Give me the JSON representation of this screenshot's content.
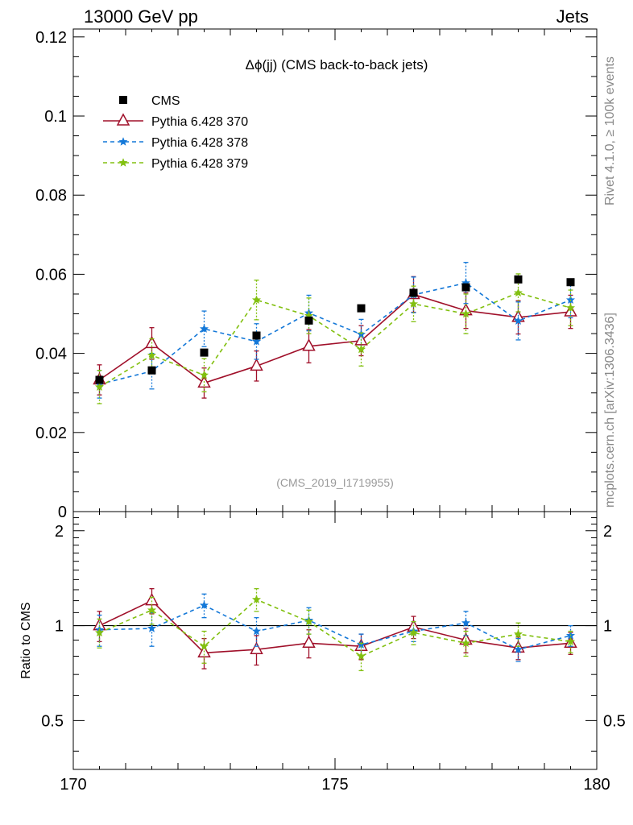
{
  "header": {
    "left": "13000 GeV pp",
    "right": "Jets"
  },
  "side": {
    "top": "Rivet 4.1.0, ≥ 100k events",
    "bottom": "mcplots.cern.ch [arXiv:1306.3436]"
  },
  "chart_data": {
    "type": "scatter",
    "title": "Δϕ(jj) (CMS back-to-back jets)",
    "analysis_tag": "(CMS_2019_I1719955)",
    "xlim": [
      170,
      180
    ],
    "x_ticks": [
      "170",
      "175",
      "180"
    ],
    "x": [
      170.5,
      171.5,
      172.5,
      173.5,
      174.5,
      175.5,
      176.5,
      177.5,
      178.5,
      179.5
    ],
    "main": {
      "ylim": [
        0,
        0.122
      ],
      "y_ticks": [
        "0",
        "0.02",
        "0.04",
        "0.06",
        "0.08",
        "0.1",
        "0.12"
      ],
      "y_tick_values": [
        0,
        0.02,
        0.04,
        0.06,
        0.08,
        0.1,
        0.12
      ]
    },
    "ratio": {
      "ylabel": "Ratio to CMS",
      "ylim": [
        0.35,
        2.3
      ],
      "y_ticks": [
        "0.5",
        "1",
        "2"
      ],
      "y_tick_values": [
        0.5,
        1,
        2
      ],
      "reference_line": 1
    },
    "series": [
      {
        "name": "CMS",
        "color": "#000000",
        "marker": "square",
        "values": [
          0.0333,
          0.0357,
          0.0402,
          0.0445,
          0.0483,
          0.0514,
          0.0553,
          0.0567,
          0.0587,
          0.058
        ],
        "errors": [
          0.0005,
          0.0005,
          0.0005,
          0.0005,
          0.0005,
          0.0005,
          0.0005,
          0.0005,
          0.0005,
          0.0005
        ],
        "ratio": [
          1,
          1,
          1,
          1,
          1,
          1,
          1,
          1,
          1,
          1
        ]
      },
      {
        "name": "Pythia 6.428 370",
        "color": "#a0102a",
        "marker": "triangle",
        "line": "solid",
        "values": [
          0.0333,
          0.0425,
          0.0325,
          0.0368,
          0.0418,
          0.0432,
          0.0549,
          0.0508,
          0.0491,
          0.0505
        ],
        "errors": [
          0.0038,
          0.004,
          0.0038,
          0.0038,
          0.0042,
          0.0038,
          0.0045,
          0.0045,
          0.0042,
          0.0042
        ],
        "ratio": [
          1.0,
          1.2,
          0.82,
          0.84,
          0.88,
          0.86,
          0.99,
          0.9,
          0.85,
          0.88
        ],
        "ratio_errors": [
          0.11,
          0.11,
          0.09,
          0.09,
          0.09,
          0.08,
          0.08,
          0.08,
          0.07,
          0.07
        ]
      },
      {
        "name": "Pythia 6.428 378",
        "color": "#1478d8",
        "marker": "star",
        "line": "dashed",
        "values": [
          0.0322,
          0.0355,
          0.0462,
          0.043,
          0.0502,
          0.0448,
          0.0548,
          0.0578,
          0.0482,
          0.0535
        ],
        "errors": [
          0.0035,
          0.0045,
          0.0045,
          0.0045,
          0.0045,
          0.0038,
          0.0045,
          0.0052,
          0.0048,
          0.0045
        ],
        "ratio": [
          0.97,
          0.98,
          1.16,
          0.96,
          1.04,
          0.87,
          0.96,
          1.02,
          0.84,
          0.93
        ],
        "ratio_errors": [
          0.11,
          0.12,
          0.1,
          0.1,
          0.1,
          0.07,
          0.07,
          0.09,
          0.07,
          0.07
        ]
      },
      {
        "name": "Pythia 6.428 379",
        "color": "#82c010",
        "marker": "star",
        "line": "dashed",
        "values": [
          0.0315,
          0.0395,
          0.0345,
          0.0535,
          0.0495,
          0.041,
          0.0525,
          0.05,
          0.0553,
          0.0515
        ],
        "errors": [
          0.0042,
          0.0042,
          0.0042,
          0.005,
          0.0045,
          0.0042,
          0.0045,
          0.005,
          0.0048,
          0.0045
        ],
        "ratio": [
          0.95,
          1.12,
          0.86,
          1.21,
          1.03,
          0.8,
          0.95,
          0.88,
          0.94,
          0.89
        ],
        "ratio_errors": [
          0.1,
          0.11,
          0.1,
          0.1,
          0.09,
          0.08,
          0.08,
          0.08,
          0.08,
          0.07
        ]
      }
    ]
  }
}
